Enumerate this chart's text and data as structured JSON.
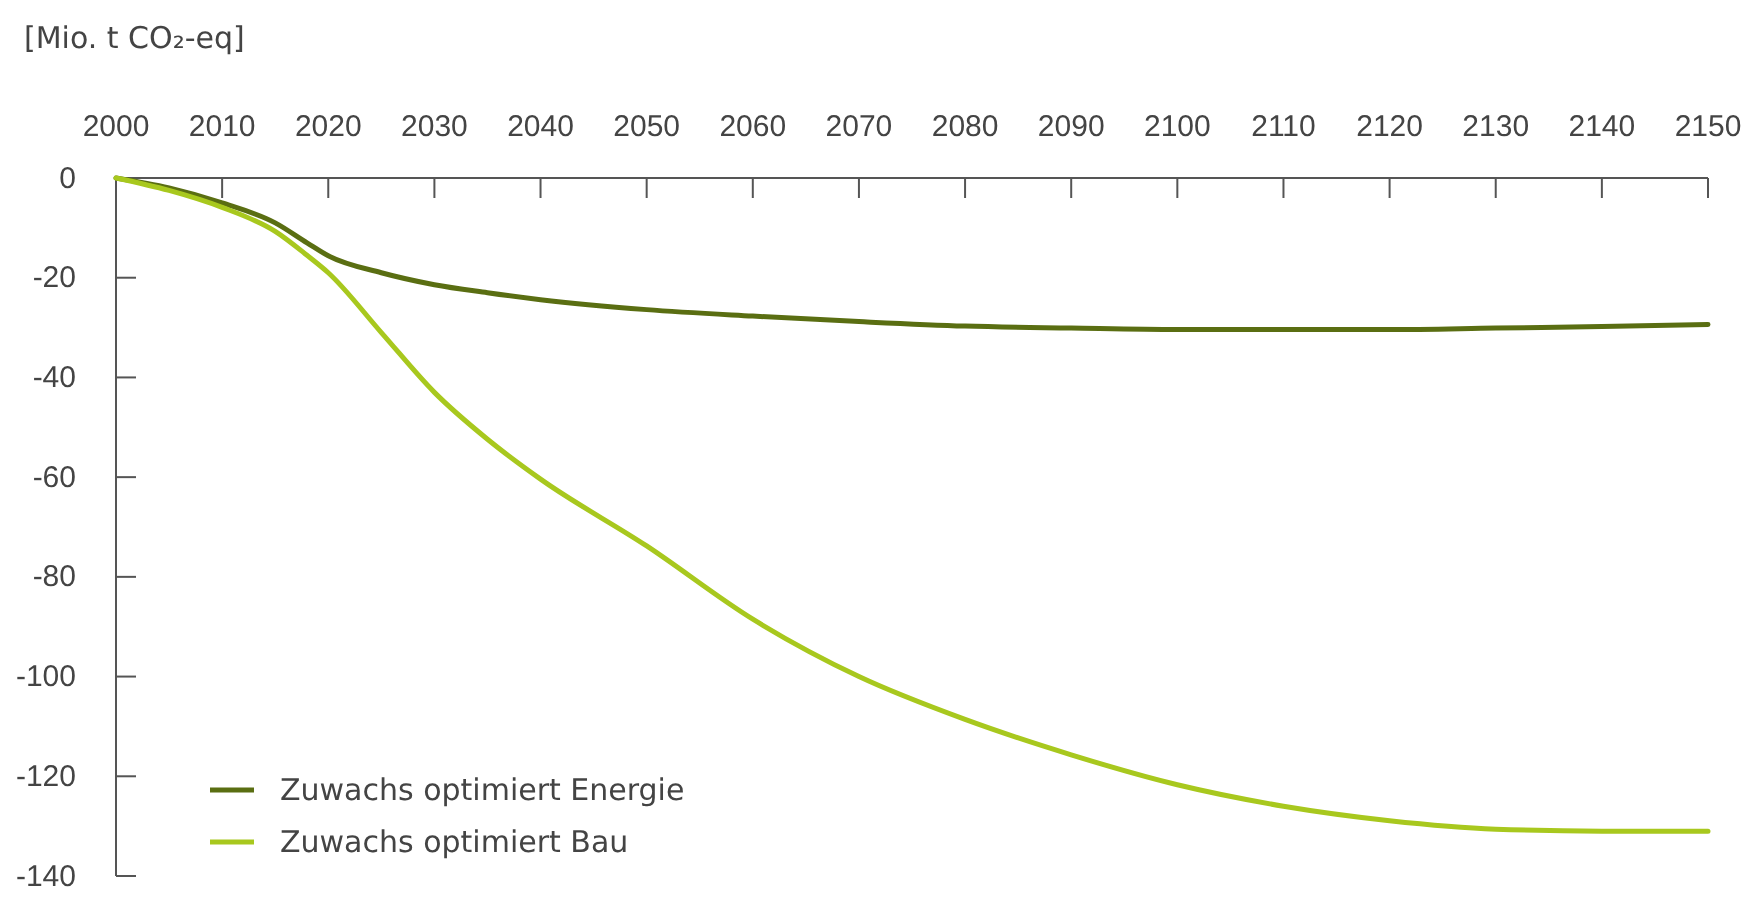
{
  "chart_data": {
    "type": "line",
    "ylabel": "[Mio. t CO₂-eq]",
    "x": [
      2000,
      2005,
      2010,
      2015,
      2018,
      2020,
      2025,
      2030,
      2035,
      2040,
      2050,
      2060,
      2070,
      2080,
      2090,
      2100,
      2110,
      2120,
      2130,
      2140,
      2150
    ],
    "series": [
      {
        "name": "Zuwachs optimiert Energie",
        "color": "#5a6e12",
        "values": [
          0,
          -2,
          -5,
          -9,
          -13,
          -15.6,
          -19,
          -21.4,
          -23,
          -24.4,
          -26.4,
          -27.7,
          -28.8,
          -29.7,
          -30.1,
          -30.4,
          -30.4,
          -30.4,
          -30.1,
          -29.8,
          -29.4
        ]
      },
      {
        "name": "Zuwachs optimiert Bau",
        "color": "#a8c81e",
        "values": [
          0,
          -2.5,
          -5.9,
          -10.7,
          -15.5,
          -19,
          -31,
          -43,
          -52.4,
          -60.4,
          -73.8,
          -88.5,
          -100,
          -108.6,
          -115.7,
          -121.7,
          -126,
          -128.9,
          -130.6,
          -131,
          -131
        ]
      }
    ],
    "xlim": [
      2000,
      2150
    ],
    "xticks": [
      2000,
      2010,
      2020,
      2030,
      2040,
      2050,
      2060,
      2070,
      2080,
      2090,
      2100,
      2110,
      2120,
      2130,
      2140,
      2150
    ],
    "ylim": [
      -140,
      0
    ],
    "yticks": [
      0,
      -20,
      -40,
      -60,
      -80,
      -100,
      -120,
      -140
    ],
    "grid": false,
    "legend": "bottom left",
    "marker": "none",
    "line_style": "solid"
  }
}
